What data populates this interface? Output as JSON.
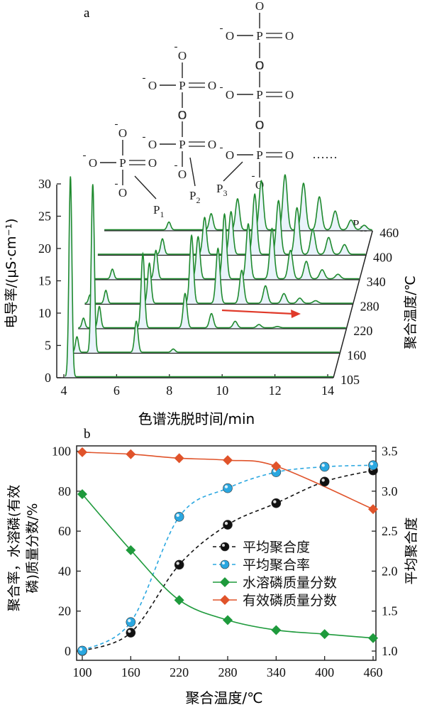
{
  "panel_a": {
    "label": "a",
    "structures": {
      "O": "O",
      "P": "P",
      "minus": "-",
      "ellipsis": "······",
      "peak_labels": [
        {
          "main": "P",
          "sub": "1"
        },
        {
          "main": "P",
          "sub": "2"
        },
        {
          "main": "P",
          "sub": "3"
        },
        {
          "main": "P",
          "sub": "11"
        }
      ]
    },
    "ylabel": "电导率/(μS·cm⁻¹)",
    "xlabel": "色谱洗脱时间/min",
    "zlabel": "聚合温度/℃"
  },
  "panel_b": {
    "label": "b",
    "ylabel_left_line1": "聚合率，水溶磷(有效",
    "ylabel_left_line2": "磷)质量分数/%",
    "ylabel_right": "平均聚合度",
    "xlabel": "聚合温度/℃"
  },
  "chart_data": [
    {
      "type": "line",
      "description": "3D stacked ion chromatograms",
      "x_ticks": [
        4,
        6,
        8,
        10,
        12,
        14
      ],
      "y_ticks": [
        0,
        5,
        10,
        15,
        20,
        25,
        30
      ],
      "xlim": [
        3.6,
        14
      ],
      "ylim": [
        0,
        33
      ],
      "z_ticks": [
        "105",
        "160",
        "220",
        "280",
        "340",
        "400",
        "460"
      ],
      "series": [
        {
          "name": "105",
          "peaks": [
            [
              4.25,
              31
            ]
          ]
        },
        {
          "name": "160",
          "peaks": [
            [
              4.25,
              2.4
            ],
            [
              4.85,
              26
            ],
            [
              6.5,
              4.8
            ],
            [
              7.9,
              0.5
            ]
          ]
        },
        {
          "name": "220",
          "peaks": [
            [
              4.25,
              1.5
            ],
            [
              4.85,
              3.3
            ],
            [
              6.5,
              11.5
            ],
            [
              8.1,
              5.3
            ],
            [
              9.1,
              2.2
            ],
            [
              10.0,
              1.0
            ],
            [
              10.9,
              0.5
            ],
            [
              11.6,
              0.2
            ]
          ]
        },
        {
          "name": "280",
          "peaks": [
            [
              4.25,
              1.3
            ],
            [
              4.85,
              2.0
            ],
            [
              6.5,
              6.2
            ],
            [
              8.1,
              10.5
            ],
            [
              9.1,
              8.5
            ],
            [
              10.0,
              5.1
            ],
            [
              10.9,
              2.7
            ],
            [
              11.6,
              1.5
            ],
            [
              12.2,
              0.8
            ],
            [
              12.8,
              0.4
            ]
          ]
        },
        {
          "name": "340",
          "peaks": [
            [
              4.85,
              1.5
            ],
            [
              6.5,
              4.4
            ],
            [
              8.1,
              6.5
            ],
            [
              9.1,
              10.0
            ],
            [
              10.0,
              8.5
            ],
            [
              10.9,
              7.8
            ],
            [
              11.6,
              4.4
            ],
            [
              12.2,
              2.7
            ],
            [
              12.8,
              1.4
            ],
            [
              13.4,
              0.7
            ]
          ]
        },
        {
          "name": "400",
          "peaks": [
            [
              6.5,
              2.4
            ],
            [
              8.1,
              5.7
            ],
            [
              9.1,
              6.6
            ],
            [
              10.0,
              9.3
            ],
            [
              10.9,
              8.3
            ],
            [
              11.6,
              7.2
            ],
            [
              12.2,
              3.8
            ],
            [
              12.8,
              2.6
            ],
            [
              13.4,
              1.5
            ]
          ]
        },
        {
          "name": "460",
          "peaks": [
            [
              6.5,
              1.2
            ],
            [
              8.1,
              2.5
            ],
            [
              9.1,
              4.8
            ],
            [
              10.0,
              7.6
            ],
            [
              10.9,
              8.5
            ],
            [
              11.6,
              7.2
            ],
            [
              12.2,
              5.1
            ],
            [
              12.8,
              2.9
            ],
            [
              13.4,
              1.5
            ],
            [
              13.9,
              0.7
            ]
          ]
        }
      ]
    },
    {
      "type": "scatter",
      "x": [
        100,
        160,
        220,
        280,
        340,
        400,
        460
      ],
      "x_ticks": [
        100,
        160,
        220,
        280,
        340,
        400,
        460
      ],
      "xlim": [
        95,
        470
      ],
      "ylim_left": [
        0,
        100
      ],
      "y_ticks_left": [
        0,
        20,
        40,
        60,
        80,
        100
      ],
      "ylim_right": [
        1.0,
        3.5
      ],
      "y_ticks_right": [
        "1.0",
        "1.5",
        "2.0",
        "2.5",
        "3.0",
        "3.5"
      ],
      "series": [
        {
          "name": "平均聚合度",
          "axis": "right",
          "color": "#111111",
          "marker": "sphere",
          "fit": "dashed",
          "values": [
            1.0,
            1.23,
            2.08,
            2.58,
            2.85,
            3.12,
            3.26
          ]
        },
        {
          "name": "平均聚合率",
          "axis": "left",
          "color": "#2aa7e0",
          "marker": "sphere",
          "fit": "dashed",
          "values": [
            0.2,
            14.5,
            67.2,
            81.5,
            89.5,
            92.2,
            93.0
          ]
        },
        {
          "name": "水溶磷质量分数",
          "axis": "left",
          "color": "#1e9a3c",
          "marker": "diamond",
          "fit": "solid",
          "values": [
            78.5,
            50.5,
            25.5,
            15.5,
            10.5,
            8.5,
            6.5
          ]
        },
        {
          "name": "有效磷质量分数",
          "axis": "left",
          "color": "#e0532a",
          "marker": "diamond",
          "fit": "solid",
          "values": [
            99.5,
            98.5,
            96.5,
            95.5,
            92.5,
            null,
            71.0
          ]
        }
      ],
      "legend_position": "center-right"
    }
  ]
}
